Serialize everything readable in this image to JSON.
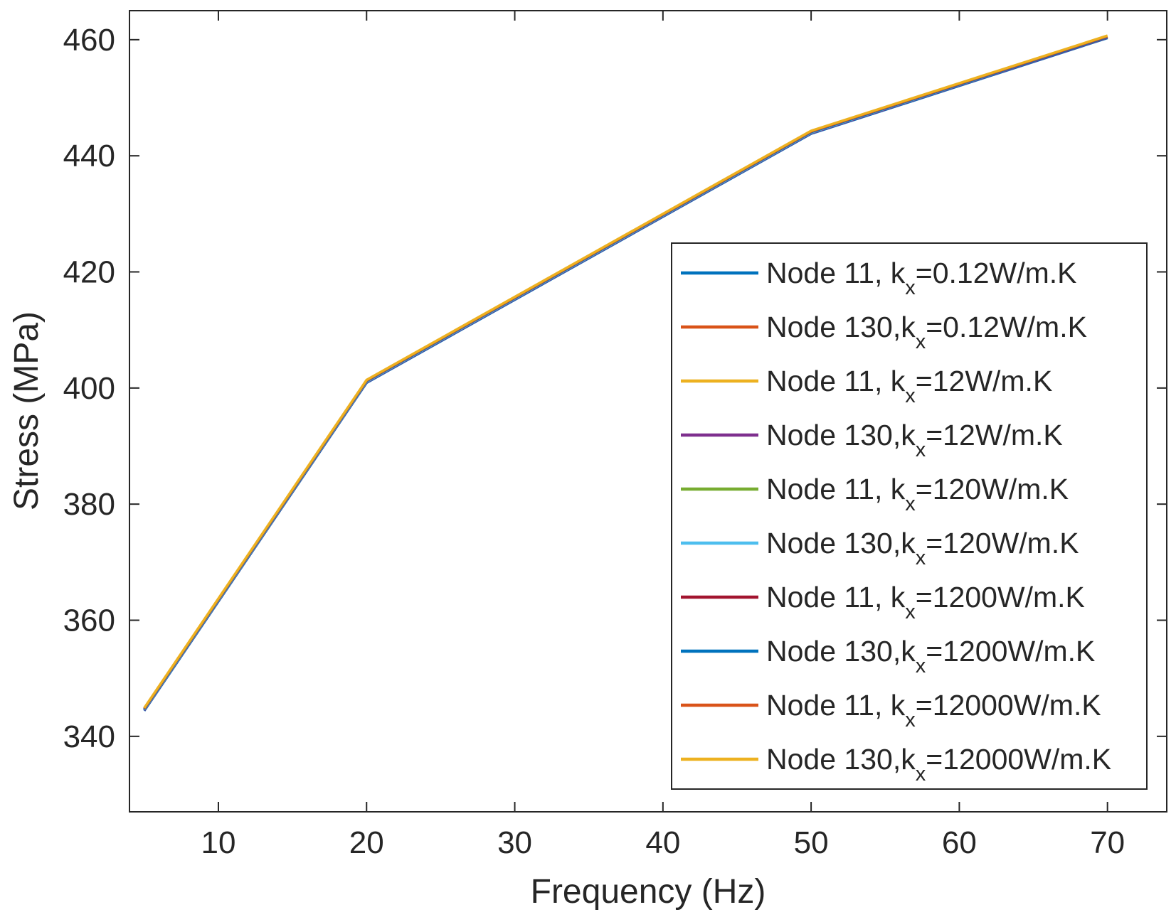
{
  "chart_data": {
    "type": "line",
    "title": "",
    "xlabel": "Frequency (Hz)",
    "ylabel": "Stress (MPa)",
    "xlim": [
      4,
      74
    ],
    "ylim": [
      327,
      465
    ],
    "xticks": [
      10,
      20,
      30,
      40,
      50,
      60,
      70
    ],
    "yticks": [
      340,
      360,
      380,
      400,
      420,
      440,
      460
    ],
    "grid": false,
    "legend_position": "lower-right",
    "x": [
      5,
      20,
      50,
      70
    ],
    "series": [
      {
        "name": "Node 11, kx=0.12W/m.K",
        "label_main": "Node 11, k",
        "label_sub": "x",
        "label_tail": "=0.12W/m.K",
        "color": "#0072BD",
        "values": [
          344.4,
          400.9,
          443.8,
          460.3
        ]
      },
      {
        "name": "Node 130,kx=0.12W/m.K",
        "label_main": "Node 130,k",
        "label_sub": "x",
        "label_tail": "=0.12W/m.K",
        "color": "#D95319",
        "values": [
          344.6,
          401.1,
          444.0,
          460.4
        ]
      },
      {
        "name": "Node 11, kx=12W/m.K",
        "label_main": "Node 11, k",
        "label_sub": "x",
        "label_tail": "=12W/m.K",
        "color": "#EDB120",
        "values": [
          344.7,
          401.2,
          444.1,
          460.5
        ]
      },
      {
        "name": "Node 130,kx=12W/m.K",
        "label_main": "Node 130,k",
        "label_sub": "x",
        "label_tail": "=12W/m.K",
        "color": "#7E2F8E",
        "values": [
          344.5,
          401.0,
          443.9,
          460.4
        ]
      },
      {
        "name": "Node 11, kx=120W/m.K",
        "label_main": "Node 11, k",
        "label_sub": "x",
        "label_tail": "=120W/m.K",
        "color": "#77AC30",
        "values": [
          344.6,
          401.1,
          444.0,
          460.5
        ]
      },
      {
        "name": "Node 130,kx=120W/m.K",
        "label_main": "Node 130,k",
        "label_sub": "x",
        "label_tail": "=120W/m.K",
        "color": "#4DBEEE",
        "values": [
          344.6,
          401.1,
          444.0,
          460.5
        ]
      },
      {
        "name": "Node 11, kx=1200W/m.K",
        "label_main": "Node 11, k",
        "label_sub": "x",
        "label_tail": "=1200W/m.K",
        "color": "#A2142F",
        "values": [
          344.7,
          401.2,
          444.1,
          460.5
        ]
      },
      {
        "name": "Node 130,kx=1200W/m.K",
        "label_main": "Node 130,k",
        "label_sub": "x",
        "label_tail": "=1200W/m.K",
        "color": "#0072BD",
        "values": [
          344.7,
          401.2,
          444.1,
          460.5
        ]
      },
      {
        "name": "Node 11, kx=12000W/m.K",
        "label_main": "Node 11, k",
        "label_sub": "x",
        "label_tail": "=12000W/m.K",
        "color": "#D95319",
        "values": [
          344.8,
          401.3,
          444.2,
          460.6
        ]
      },
      {
        "name": "Node 130,kx=12000W/m.K",
        "label_main": "Node 130,k",
        "label_sub": "x",
        "label_tail": "=12000W/m.K",
        "color": "#EDB120",
        "values": [
          344.9,
          401.4,
          444.3,
          460.7
        ]
      }
    ]
  }
}
